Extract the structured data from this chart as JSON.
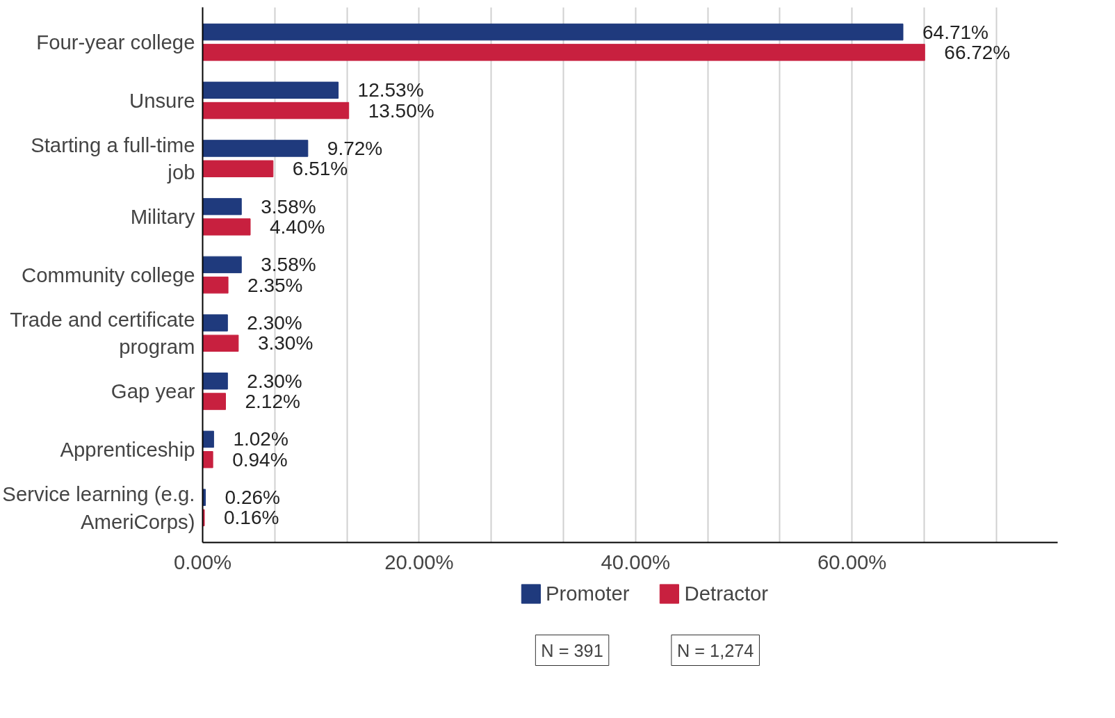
{
  "chart_data": {
    "type": "bar",
    "orientation": "horizontal",
    "categories": [
      "Four-year college",
      "Unsure",
      "Starting a full-time job",
      "Military",
      "Community college",
      "Trade and certificate program",
      "Gap year",
      "Apprenticeship",
      "Service learning (e.g. AmeriCorps)"
    ],
    "series": [
      {
        "name": "Promoter",
        "color": "#1f3a7d",
        "values": [
          64.71,
          12.53,
          9.72,
          3.58,
          3.58,
          2.3,
          2.3,
          1.02,
          0.26
        ],
        "value_labels": [
          "64.71%",
          "12.53%",
          "9.72%",
          "3.58%",
          "3.58%",
          "2.30%",
          "2.30%",
          "1.02%",
          "0.26%"
        ]
      },
      {
        "name": "Detractor",
        "color": "#c8203f",
        "values": [
          66.72,
          13.5,
          6.51,
          4.4,
          2.35,
          3.3,
          2.12,
          0.94,
          0.16
        ],
        "value_labels": [
          "66.72%",
          "13.50%",
          "6.51%",
          "4.40%",
          "2.35%",
          "3.30%",
          "2.12%",
          "0.94%",
          "0.16%"
        ]
      }
    ],
    "xlim": [
      0,
      79
    ],
    "xticks": [
      {
        "value": 0,
        "label": "0.00%"
      },
      {
        "value": 6.667,
        "label": null
      },
      {
        "value": 13.333,
        "label": null
      },
      {
        "value": 20,
        "label": "20.00%"
      },
      {
        "value": 26.667,
        "label": null
      },
      {
        "value": 33.333,
        "label": null
      },
      {
        "value": 40,
        "label": "40.00%"
      },
      {
        "value": 46.667,
        "label": null
      },
      {
        "value": 53.333,
        "label": null
      },
      {
        "value": 60,
        "label": "60.00%"
      },
      {
        "value": 66.667,
        "label": null
      },
      {
        "value": 73.333,
        "label": null
      }
    ],
    "grid": "x",
    "legend": "bottom",
    "annotations": [
      "N = 391",
      "N = 1,274"
    ]
  }
}
